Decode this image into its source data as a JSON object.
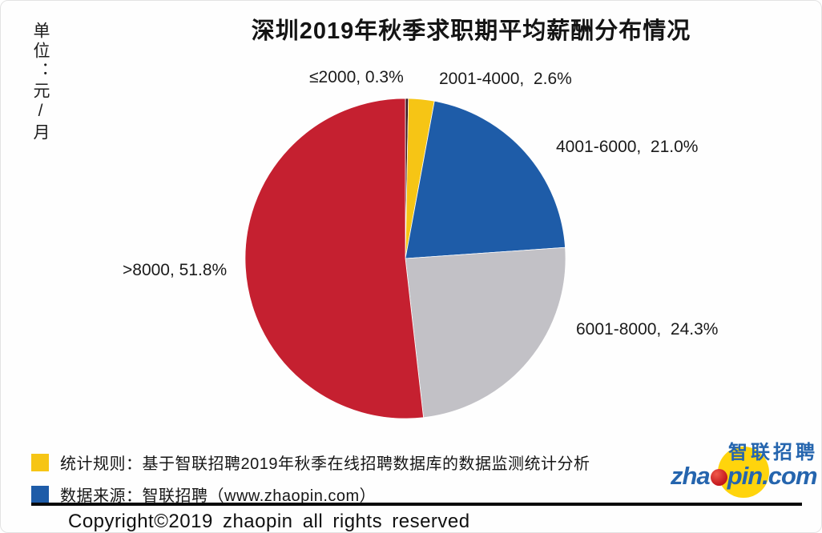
{
  "title": "深圳2019年秋季求职期平均薪酬分布情况",
  "unit_label": "单位：元/月",
  "chart_data": {
    "type": "pie",
    "title": "深圳2019年秋季求职期平均薪酬分布情况",
    "unit": "元/月",
    "start_angle": "top",
    "direction": "clockwise",
    "slices": [
      {
        "label": "≤2000",
        "value_pct": 0.3,
        "color": "#3B1720",
        "display": "≤2000, 0.3%"
      },
      {
        "label": "2001-4000",
        "value_pct": 2.6,
        "color": "#F6C515",
        "display": "2001-4000,  2.6%"
      },
      {
        "label": "4001-6000",
        "value_pct": 21.0,
        "color": "#1E5CA8",
        "display": "4001-6000,  21.0%"
      },
      {
        "label": "6001-8000",
        "value_pct": 24.3,
        "color": "#C2C1C6",
        "display": "6001-8000,  24.3%"
      },
      {
        "label": ">8000",
        "value_pct": 51.8,
        "color": "#C52030",
        "display": ">8000, 51.8%"
      }
    ]
  },
  "legend": [
    {
      "color": "#F6C515",
      "text": "统计规则：基于智联招聘2019年秋季在线招聘数据库的数据监测统计分析"
    },
    {
      "color": "#1E5CA8",
      "text": "数据来源：智联招聘（www.zhaopin.com）"
    }
  ],
  "footer": {
    "copyright": "Copyright©2019 zhaopin all rights reserved"
  },
  "logo": {
    "brand_cn": "智联招聘",
    "domain_pre": "zha",
    "domain_post": "pin.com",
    "blue": "#2565AE",
    "yellow": "#FFD40C"
  }
}
